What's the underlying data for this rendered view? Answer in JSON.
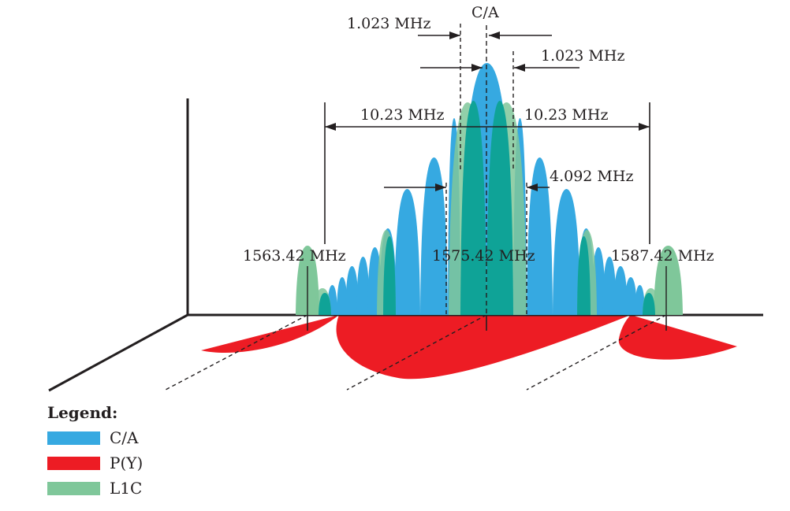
{
  "colors": {
    "ca": "#36a9e1",
    "py": "#ed1c24",
    "l1c": "#7fc79a",
    "overlap": "#0fa397",
    "ink": "#231f20"
  },
  "labels": {
    "ca_top": "C/A",
    "chip_ca_left": "1.023 MHz",
    "chip_ca_right": "1.023 MHz",
    "chip_p_left": "10.23 MHz",
    "chip_p_right": "10.23 MHz",
    "chip_l1c": "4.092 MHz",
    "freq_left": "1563.42 MHz",
    "freq_center": "1575.42 MHz",
    "freq_right": "1587.42 MHz"
  },
  "legend": {
    "title": "Legend:",
    "items": [
      {
        "label": "C/A",
        "color": "#36a9e1",
        "icon": "ca-swatch"
      },
      {
        "label": "P(Y)",
        "color": "#ed1c24",
        "icon": "py-swatch"
      },
      {
        "label": "L1C",
        "color": "#7fc79a",
        "icon": "l1c-swatch"
      }
    ]
  }
}
